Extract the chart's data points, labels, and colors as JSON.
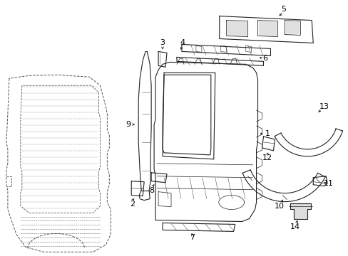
{
  "background_color": "#ffffff",
  "line_color": "#222222",
  "text_color": "#000000",
  "fig_width": 4.89,
  "fig_height": 3.6,
  "dpi": 100
}
